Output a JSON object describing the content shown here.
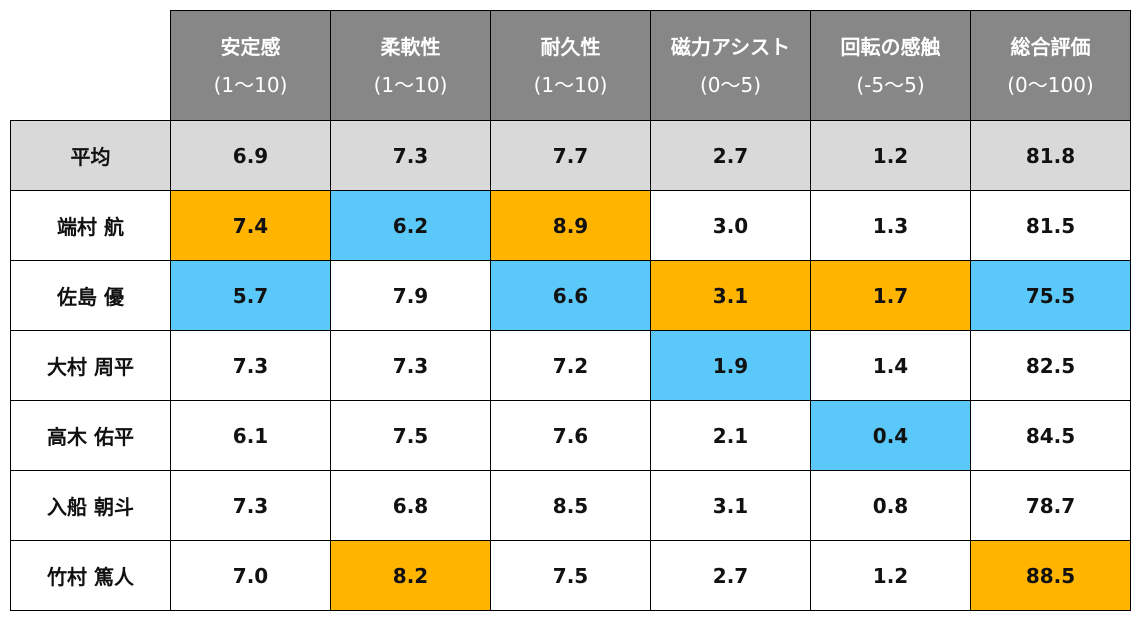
{
  "colors": {
    "header_bg": "#878787",
    "average_row_bg": "#d9d9d9",
    "highlight_high": "#ffb400",
    "highlight_low": "#5bc8fa",
    "border": "#000000"
  },
  "columns": [
    {
      "label": "安定感",
      "range": "(1〜10)"
    },
    {
      "label": "柔軟性",
      "range": "(1〜10)"
    },
    {
      "label": "耐久性",
      "range": "(1〜10)"
    },
    {
      "label": "磁力アシスト",
      "range": "(0〜5)"
    },
    {
      "label": "回転の感触",
      "range": "(-5〜5)"
    },
    {
      "label": "総合評価",
      "range": "(0〜100)"
    }
  ],
  "average": {
    "label": "平均",
    "values": [
      "6.9",
      "7.3",
      "7.7",
      "2.7",
      "1.2",
      "81.8"
    ]
  },
  "rows": [
    {
      "name": "端村 航",
      "values": [
        "7.4",
        "6.2",
        "8.9",
        "3.0",
        "1.3",
        "81.5"
      ],
      "highlights": [
        "high",
        "low",
        "high",
        "",
        "",
        ""
      ]
    },
    {
      "name": "佐島 優",
      "values": [
        "5.7",
        "7.9",
        "6.6",
        "3.1",
        "1.7",
        "75.5"
      ],
      "highlights": [
        "low",
        "",
        "low",
        "high",
        "high",
        "low"
      ]
    },
    {
      "name": "大村 周平",
      "values": [
        "7.3",
        "7.3",
        "7.2",
        "1.9",
        "1.4",
        "82.5"
      ],
      "highlights": [
        "",
        "",
        "",
        "low",
        "",
        ""
      ]
    },
    {
      "name": "高木 佑平",
      "values": [
        "6.1",
        "7.5",
        "7.6",
        "2.1",
        "0.4",
        "84.5"
      ],
      "highlights": [
        "",
        "",
        "",
        "",
        "low",
        ""
      ]
    },
    {
      "name": "入船 朝斗",
      "values": [
        "7.3",
        "6.8",
        "8.5",
        "3.1",
        "0.8",
        "78.7"
      ],
      "highlights": [
        "",
        "",
        "",
        "",
        "",
        ""
      ]
    },
    {
      "name": "竹村 篤人",
      "values": [
        "7.0",
        "8.2",
        "7.5",
        "2.7",
        "1.2",
        "88.5"
      ],
      "highlights": [
        "",
        "high",
        "",
        "",
        "",
        "high"
      ]
    }
  ]
}
